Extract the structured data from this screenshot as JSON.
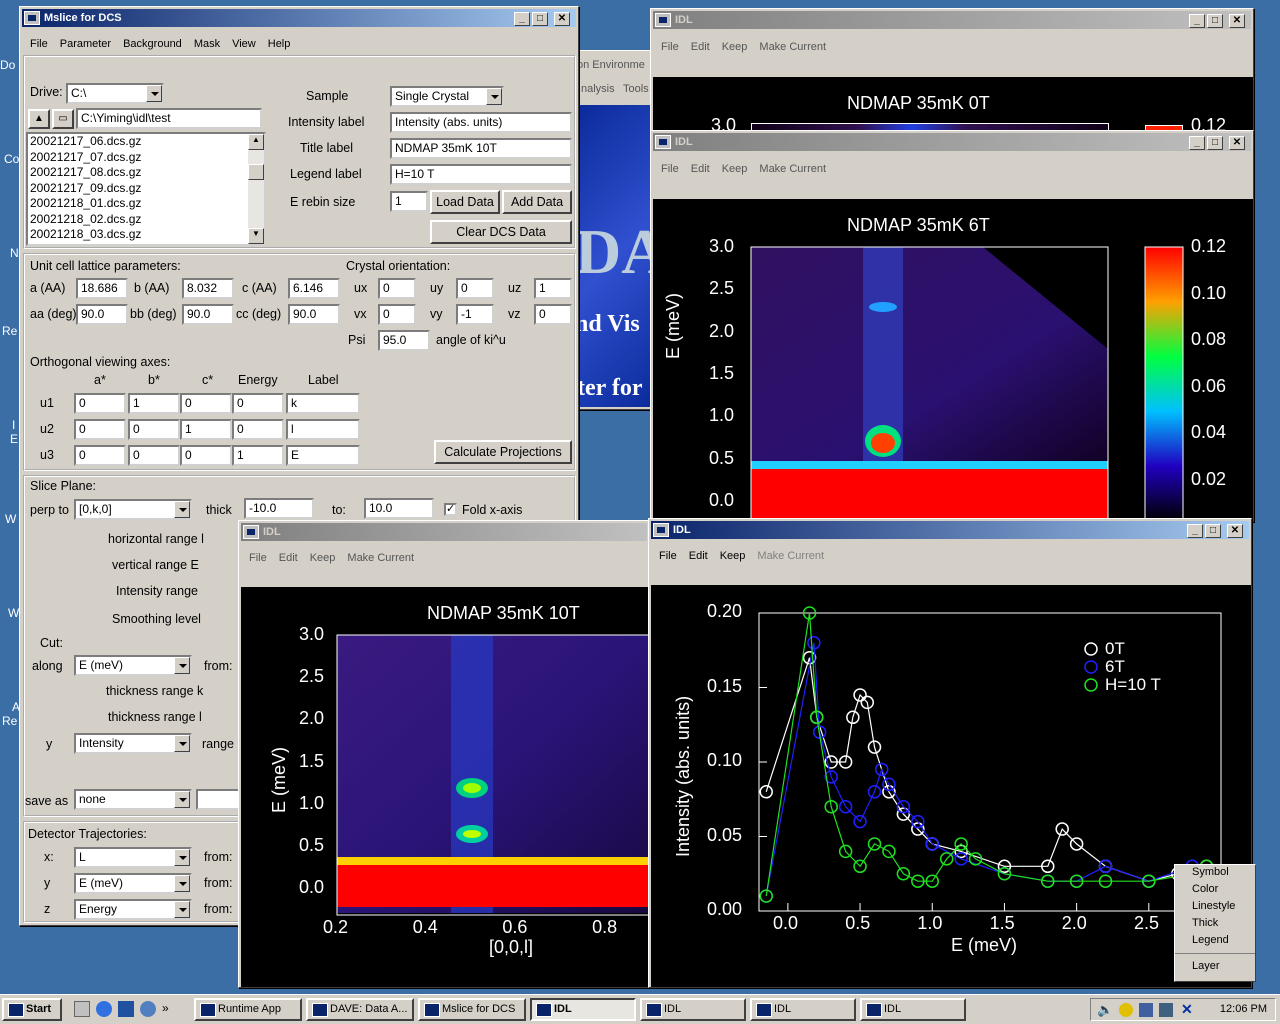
{
  "desktop": {
    "labels": [
      "Do",
      "Co",
      "N",
      "Re",
      "I",
      "E",
      "W",
      "W",
      "A",
      "Re"
    ]
  },
  "mslice": {
    "title": "Mslice for DCS",
    "menu": [
      "File",
      "Parameter",
      "Background",
      "Mask",
      "View",
      "Help"
    ],
    "drive_label": "Drive:",
    "drive_value": "C:\\",
    "path": "C:\\Yiming\\idl\\test",
    "files": [
      "20021217_06.dcs.gz",
      "20021217_07.dcs.gz",
      "20021217_08.dcs.gz",
      "20021217_09.dcs.gz",
      "20021218_01.dcs.gz",
      "20021218_02.dcs.gz",
      "20021218_03.dcs.gz"
    ],
    "sample_label": "Sample",
    "sample_value": "Single Crystal",
    "intensity_label": "Intensity label",
    "intensity_value": "Intensity (abs. units)",
    "title_label": "Title label",
    "title_value": "NDMAP  35mK 10T",
    "legend_label": "Legend label",
    "legend_value": "H=10 T",
    "erebin_label": "E rebin size",
    "erebin_value": "1",
    "load_data": "Load Data",
    "add_data": "Add Data",
    "clear_data": "Clear DCS Data",
    "unit_cell_title": "Unit cell lattice parameters:",
    "a_label": "a (AA)",
    "a_value": "18.686",
    "b_label": "b (AA)",
    "b_value": "8.032",
    "c_label": "c (AA)",
    "c_value": "6.146",
    "aa_label": "aa (deg)",
    "aa_value": "90.0",
    "bb_label": "bb (deg)",
    "bb_value": "90.0",
    "cc_label": "cc (deg)",
    "cc_value": "90.0",
    "crystal_title": "Crystal orientation:",
    "ux_label": "ux",
    "ux_value": "0",
    "uy_label": "uy",
    "uy_value": "0",
    "uz_label": "uz",
    "uz_value": "1",
    "vx_label": "vx",
    "vx_value": "0",
    "vy_label": "vy",
    "vy_value": "-1",
    "vz_label": "vz",
    "vz_value": "0",
    "psi_label": "Psi",
    "psi_value": "95.0",
    "psi_note": "angle of ki^u",
    "ortho_title": "Orthogonal viewing axes:",
    "ortho_headers": [
      "a*",
      "b*",
      "c*",
      "Energy",
      "Label"
    ],
    "u1": {
      "label": "u1",
      "values": [
        "0",
        "1",
        "0",
        "0",
        "k"
      ]
    },
    "u2": {
      "label": "u2",
      "values": [
        "0",
        "0",
        "1",
        "0",
        "l"
      ]
    },
    "u3": {
      "label": "u3",
      "values": [
        "0",
        "0",
        "0",
        "1",
        "E"
      ]
    },
    "calc_proj": "Calculate Projections",
    "slice_title": "Slice Plane:",
    "perp_label": "perp to",
    "perp_value": "[0,k,0]",
    "thick_label": "thick",
    "thick_value": "-10.0",
    "to_label": "to:",
    "to_value": "10.0",
    "fold_label": "Fold x-axis",
    "horiz": "horizontal range l",
    "vert": "vertical range E",
    "intensity_range": "Intensity range",
    "smoothing": "Smoothing level",
    "cut_label": "Cut:",
    "along_label": "along",
    "along_value": "E (meV)",
    "from_label": "from:",
    "thick_k": "thickness range k",
    "thick_l": "thickness range l",
    "y_label": "y",
    "y_value": "Intensity",
    "range_label": "range",
    "saveas_label": "save as",
    "saveas_value": "none",
    "det_title": "Detector Trajectories:",
    "dx_label": "x:",
    "dx_value": "L",
    "dy_label": "y",
    "dy_value": "E (meV)",
    "dz_label": "z",
    "dz_value": "Energy"
  },
  "dave": {
    "title": "DAVE: Data A...",
    "menu_tail": "on Environme",
    "menu_items": [
      "nalysis",
      "Tools"
    ],
    "splash1": "nd Vis",
    "splash2": "ter for",
    "splash_big": "DA"
  },
  "idl_common": {
    "title": "IDL",
    "menu": [
      "File",
      "Edit",
      "Keep",
      "Make Current"
    ]
  },
  "plot0T": {
    "title": "NDMAP 35mK 0T",
    "ytop": "3.0",
    "cbtop": "0.12"
  },
  "plot6T": {
    "title": "NDMAP 35mK 6T",
    "ylabel": "E (meV)",
    "yticks": [
      "3.0",
      "2.5",
      "2.0",
      "1.5",
      "1.0",
      "0.5",
      "0.0"
    ],
    "cbticks": [
      "0.12",
      "0.10",
      "0.08",
      "0.06",
      "0.04",
      "0.02"
    ]
  },
  "plot10T": {
    "title": "NDMAP  35mK 10T",
    "ylabel": "E (meV)",
    "xlabel": "[0,0,l]",
    "yticks": [
      "3.0",
      "2.5",
      "2.0",
      "1.5",
      "1.0",
      "0.5",
      "0.0"
    ],
    "xticks": [
      "0.2",
      "0.4",
      "0.6",
      "0.8"
    ]
  },
  "cutplot": {
    "ylabel": "Intensity (abs. units)",
    "xlabel": "E (meV)",
    "yticks": [
      "0.20",
      "0.15",
      "0.10",
      "0.05",
      "0.00"
    ],
    "xticks": [
      "0.0",
      "0.5",
      "1.0",
      "1.5",
      "2.0",
      "2.5"
    ],
    "legend": [
      "0T",
      "6T",
      "H=10 T"
    ],
    "colors": {
      "0T": "#ffffff",
      "6T": "#2020ff",
      "10T": "#20e020"
    },
    "context_menu": [
      "Symbol",
      "Color",
      "Linestyle",
      "Thick",
      "Legend",
      "Layer"
    ]
  },
  "chart_data": [
    {
      "type": "heatmap",
      "title": "NDMAP 35mK 6T",
      "ylabel": "E (meV)",
      "ylim": [
        -0.2,
        3.0
      ],
      "colorbar": [
        0.0,
        0.12
      ]
    },
    {
      "type": "heatmap",
      "title": "NDMAP  35mK 10T",
      "xlabel": "[0,0,l]",
      "ylabel": "E (meV)",
      "xlim": [
        0.2,
        0.9
      ],
      "ylim": [
        -0.2,
        3.0
      ]
    },
    {
      "type": "scatter",
      "xlabel": "E (meV)",
      "ylabel": "Intensity (abs. units)",
      "xlim": [
        -0.2,
        3.0
      ],
      "ylim": [
        0,
        0.2
      ],
      "series": [
        {
          "name": "0T",
          "x": [
            -0.15,
            0.15,
            0.2,
            0.3,
            0.4,
            0.45,
            0.5,
            0.55,
            0.6,
            0.7,
            0.8,
            0.9,
            1.0,
            1.2,
            1.5,
            1.8,
            1.9,
            2.0,
            2.2,
            2.5,
            2.7,
            2.9
          ],
          "y": [
            0.08,
            0.17,
            0.13,
            0.1,
            0.1,
            0.13,
            0.145,
            0.14,
            0.11,
            0.08,
            0.065,
            0.055,
            0.045,
            0.04,
            0.03,
            0.03,
            0.055,
            0.045,
            0.03,
            0.02,
            0.025,
            0.03
          ]
        },
        {
          "name": "6T",
          "x": [
            -0.15,
            0.18,
            0.22,
            0.3,
            0.4,
            0.5,
            0.6,
            0.65,
            0.7,
            0.8,
            0.9,
            1.0,
            1.2,
            1.5,
            1.8,
            2.0,
            2.2,
            2.5,
            2.8
          ],
          "y": [
            0.01,
            0.18,
            0.12,
            0.09,
            0.07,
            0.06,
            0.08,
            0.095,
            0.085,
            0.07,
            0.06,
            0.045,
            0.035,
            0.025,
            0.02,
            0.02,
            0.03,
            0.02,
            0.03
          ]
        },
        {
          "name": "H=10 T",
          "x": [
            -0.15,
            0.15,
            0.2,
            0.3,
            0.4,
            0.5,
            0.6,
            0.7,
            0.8,
            0.9,
            1.0,
            1.1,
            1.2,
            1.3,
            1.5,
            1.8,
            2.0,
            2.2,
            2.5,
            2.8,
            2.9
          ],
          "y": [
            0.01,
            0.2,
            0.13,
            0.07,
            0.04,
            0.03,
            0.045,
            0.04,
            0.025,
            0.02,
            0.02,
            0.035,
            0.045,
            0.035,
            0.025,
            0.02,
            0.02,
            0.02,
            0.02,
            0.025,
            0.03
          ]
        }
      ]
    }
  ],
  "taskbar": {
    "start": "Start",
    "buttons": [
      "Runtime App",
      "DAVE: Data A...",
      "Mslice for DCS",
      "IDL",
      "IDL",
      "IDL",
      "IDL"
    ],
    "clock": "12:06 PM"
  }
}
